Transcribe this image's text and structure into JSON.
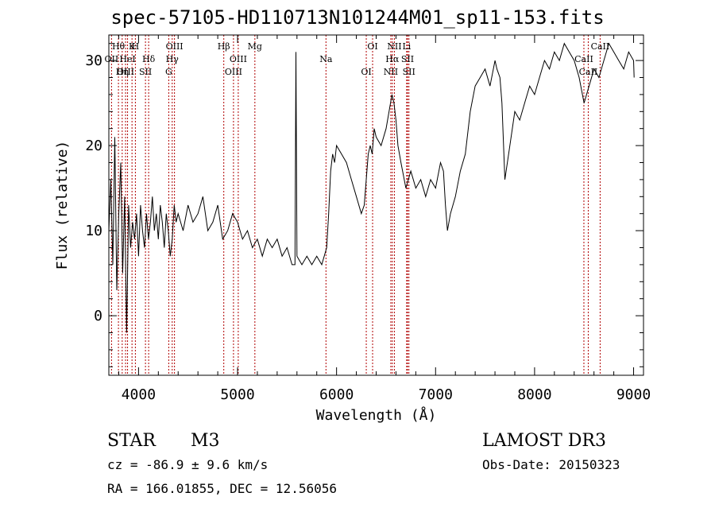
{
  "title": "spec-57105-HD110713N101244M01_sp11-153.fits",
  "info": {
    "class_label": "STAR",
    "subclass": "M3",
    "survey": "LAMOST DR3",
    "cz": "cz = -86.9 ± 9.6 km/s",
    "obs_date": "Obs-Date: 20150323",
    "radec": "RA = 166.01855, DEC =  12.56056"
  },
  "colors": {
    "spectrum": "#000000",
    "line_markers": "#b00000",
    "axes": "#000000"
  },
  "chart_data": {
    "type": "line",
    "title": "spec-57105-HD110713N101244M01_sp11-153.fits",
    "xlabel": "Wavelength (Å)",
    "ylabel": "Flux (relative)",
    "xlim": [
      3700,
      9100
    ],
    "ylim": [
      -7,
      33
    ],
    "xticks": [
      4000,
      5000,
      6000,
      7000,
      8000,
      9000
    ],
    "yticks": [
      0,
      10,
      20,
      30
    ],
    "grid": false,
    "series": [
      {
        "values_note_free": true,
        "x": [
          3700,
          3720,
          3740,
          3760,
          3780,
          3800,
          3820,
          3840,
          3860,
          3880,
          3900,
          3920,
          3940,
          3960,
          3980,
          4000,
          4020,
          4040,
          4060,
          4080,
          4100,
          4120,
          4140,
          4160,
          4180,
          4200,
          4220,
          4240,
          4260,
          4280,
          4300,
          4320,
          4340,
          4360,
          4380,
          4400,
          4450,
          4500,
          4550,
          4600,
          4650,
          4700,
          4750,
          4800,
          4850,
          4900,
          4950,
          5000,
          5050,
          5100,
          5150,
          5200,
          5250,
          5300,
          5350,
          5400,
          5450,
          5500,
          5550,
          5580,
          5590,
          5600,
          5650,
          5700,
          5750,
          5800,
          5850,
          5900,
          5920,
          5940,
          5960,
          5980,
          6000,
          6050,
          6100,
          6150,
          6200,
          6250,
          6280,
          6300,
          6320,
          6340,
          6360,
          6380,
          6400,
          6450,
          6500,
          6530,
          6560,
          6580,
          6600,
          6620,
          6650,
          6700,
          6750,
          6800,
          6850,
          6900,
          6950,
          7000,
          7050,
          7080,
          7100,
          7120,
          7150,
          7200,
          7250,
          7300,
          7350,
          7400,
          7450,
          7500,
          7550,
          7600,
          7620,
          7650,
          7670,
          7700,
          7750,
          7800,
          7850,
          7900,
          7950,
          8000,
          8050,
          8100,
          8150,
          8200,
          8250,
          8300,
          8350,
          8400,
          8450,
          8500,
          8550,
          8600,
          8650,
          8700,
          8750,
          8800,
          8850,
          8900,
          8950,
          9000,
          9005
        ],
        "y": [
          10,
          16,
          6,
          21,
          3,
          12,
          18,
          5,
          14,
          -2,
          13,
          8,
          11,
          9,
          12,
          7,
          13,
          10,
          8,
          12,
          9,
          11,
          14,
          10,
          12,
          9,
          13,
          11,
          8,
          12,
          10,
          7,
          9,
          13,
          11,
          12,
          10,
          13,
          11,
          12,
          14,
          10,
          11,
          13,
          9,
          10,
          12,
          11,
          9,
          10,
          8,
          9,
          7,
          9,
          8,
          9,
          7,
          8,
          6,
          6,
          31,
          7,
          6,
          7,
          6,
          7,
          6,
          8,
          12,
          17,
          19,
          18,
          20,
          19,
          18,
          16,
          14,
          12,
          13,
          16,
          19,
          20,
          19,
          22,
          21,
          20,
          22,
          24,
          26,
          25,
          23,
          20,
          18,
          15,
          17,
          15,
          16,
          14,
          16,
          15,
          18,
          17,
          13,
          10,
          12,
          14,
          17,
          19,
          24,
          27,
          28,
          29,
          27,
          30,
          29,
          28,
          25,
          16,
          20,
          24,
          23,
          25,
          27,
          26,
          28,
          30,
          29,
          31,
          30,
          32,
          31,
          30,
          28,
          25,
          27,
          29,
          28,
          30,
          32,
          31,
          30,
          29,
          31,
          30,
          28
        ]
      }
    ],
    "annotations": [
      {
        "label": "Hθ",
        "x": 3797
      },
      {
        "label": "OII",
        "x": 3727
      },
      {
        "label": "OIII",
        "x": 3869
      },
      {
        "label": "K",
        "x": 3934
      },
      {
        "label": "HeI",
        "x": 3889
      },
      {
        "label": "Hη",
        "x": 3835
      },
      {
        "label": "H",
        "x": 3968
      },
      {
        "label": "Hδ",
        "x": 4102
      },
      {
        "label": "SII",
        "x": 4070
      },
      {
        "label": "OIII",
        "x": 4363
      },
      {
        "label": "Hγ",
        "x": 4340
      },
      {
        "label": "G",
        "x": 4305
      },
      {
        "label": "Hβ",
        "x": 4861
      },
      {
        "label": "OIII",
        "x": 5007
      },
      {
        "label": "OIII",
        "x": 4959
      },
      {
        "label": "Mg",
        "x": 5175
      },
      {
        "label": "Na",
        "x": 5893
      },
      {
        "label": "OI",
        "x": 6300
      },
      {
        "label": "OI",
        "x": 6364
      },
      {
        "label": "Hα",
        "x": 6563
      },
      {
        "label": "NII",
        "x": 6548
      },
      {
        "label": "NII",
        "x": 6584
      },
      {
        "label": "SII",
        "x": 6717
      },
      {
        "label": "SII",
        "x": 6731
      },
      {
        "label": "Li",
        "x": 6708
      },
      {
        "label": "CaII",
        "x": 8498
      },
      {
        "label": "CaII",
        "x": 8542
      },
      {
        "label": "CaII",
        "x": 8662
      }
    ]
  }
}
